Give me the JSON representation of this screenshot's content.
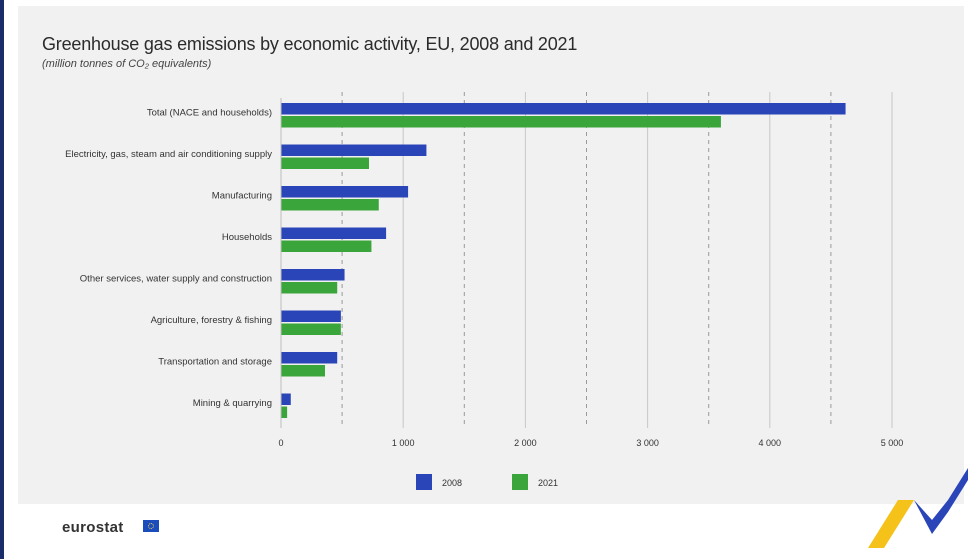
{
  "header": {
    "title": "Greenhouse gas emissions by economic activity, EU, 2008 and 2021",
    "subtitle": "(million tonnes of CO₂ equivalents)"
  },
  "footer": {
    "logo_text": "eurostat"
  },
  "colors": {
    "series_2008": "#2a45b8",
    "series_2021": "#3aa53a",
    "panel": "#f1f1f1"
  },
  "chart_data": {
    "type": "bar",
    "orientation": "horizontal",
    "title": "Greenhouse gas emissions by economic activity, EU, 2008 and 2021",
    "subtitle": "(million tonnes of CO₂ equivalents)",
    "categories": [
      "Total (NACE and households)",
      "Electricity, gas, steam and air conditioning supply",
      "Manufacturing",
      "Households",
      "Other services, water supply and construction",
      "Agriculture, forestry & fishing",
      "Transportation and storage",
      "Mining & quarrying"
    ],
    "series": [
      {
        "name": "2008",
        "color": "#2a45b8",
        "values": [
          4620,
          1190,
          1040,
          860,
          520,
          490,
          460,
          80
        ]
      },
      {
        "name": "2021",
        "color": "#3aa53a",
        "values": [
          3600,
          720,
          800,
          740,
          460,
          490,
          360,
          50
        ]
      }
    ],
    "xlim": [
      0,
      5000
    ],
    "xticks": [
      0,
      1000,
      2000,
      3000,
      4000,
      5000
    ],
    "xtick_labels": [
      "0",
      "1 000",
      "2 000",
      "3 000",
      "4 000",
      "5 000"
    ],
    "legend": [
      "2008",
      "2021"
    ],
    "legend_position": "bottom",
    "grid": "vertical"
  }
}
